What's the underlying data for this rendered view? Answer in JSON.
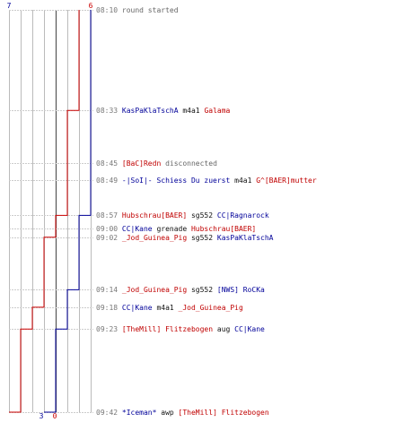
{
  "chart_data": {
    "type": "line",
    "title": "",
    "colors": {
      "red": "#cc0000",
      "blue": "#000099",
      "grid": "#bbbbbb",
      "axis": "#555555"
    },
    "series": [
      {
        "color": "#cc0000",
        "start": 6,
        "end": 0,
        "steps": [
          [
            "08:10",
            6
          ],
          [
            "08:33",
            5
          ],
          [
            "08:57",
            4
          ],
          [
            "09:02",
            3
          ],
          [
            "09:18",
            2
          ],
          [
            "09:23",
            1
          ],
          [
            "09:42",
            0
          ]
        ]
      },
      {
        "color": "#000099",
        "start": 7,
        "end": 3,
        "steps": [
          [
            "08:10",
            7
          ],
          [
            "08:57",
            6
          ],
          [
            "09:14",
            5
          ],
          [
            "09:23",
            4
          ],
          [
            "09:42",
            3
          ]
        ]
      }
    ],
    "labels": {
      "blue_start": "7",
      "red_start": "6",
      "blue_end": "3",
      "red_end": "0"
    }
  },
  "events": [
    {
      "time": "08:10",
      "parts": [
        {
          "text": "round started",
          "c": "grey"
        }
      ]
    },
    {
      "time": "08:33",
      "parts": [
        {
          "text": "KasPaKlaTschA",
          "c": "blue"
        },
        {
          "text": " m4a1 ",
          "c": "blk"
        },
        {
          "text": "Galama",
          "c": "red"
        }
      ]
    },
    {
      "time": "08:45",
      "parts": [
        {
          "text": "[BaC]Redn",
          "c": "red"
        },
        {
          "text": " disconnected",
          "c": "grey"
        }
      ]
    },
    {
      "time": "08:49",
      "parts": [
        {
          "text": "-|SoI|- Schiess Du zuerst",
          "c": "blue"
        },
        {
          "text": " m4a1 ",
          "c": "blk"
        },
        {
          "text": "G^[BAER]mutter",
          "c": "red"
        }
      ]
    },
    {
      "time": "08:57",
      "parts": [
        {
          "text": "Hubschrau[BAER]",
          "c": "red"
        },
        {
          "text": " sg552 ",
          "c": "blk"
        },
        {
          "text": "CC|Ragnarock",
          "c": "blue"
        }
      ]
    },
    {
      "time": "09:00",
      "parts": [
        {
          "text": "CC|Kane",
          "c": "blue"
        },
        {
          "text": " grenade ",
          "c": "blk"
        },
        {
          "text": "Hubschrau[BAER]",
          "c": "red"
        }
      ]
    },
    {
      "time": "09:02",
      "parts": [
        {
          "text": "_Jod_Guinea_Pig",
          "c": "red"
        },
        {
          "text": " sg552 ",
          "c": "blk"
        },
        {
          "text": "KasPaKlaTschA",
          "c": "blue"
        }
      ]
    },
    {
      "time": "09:14",
      "parts": [
        {
          "text": "_Jod_Guinea_Pig",
          "c": "red"
        },
        {
          "text": " sg552 ",
          "c": "blk"
        },
        {
          "text": "[NWS] RoCKa",
          "c": "blue"
        }
      ]
    },
    {
      "time": "09:18",
      "parts": [
        {
          "text": "CC|Kane",
          "c": "blue"
        },
        {
          "text": " m4a1 ",
          "c": "blk"
        },
        {
          "text": "_Jod_Guinea_Pig",
          "c": "red"
        }
      ]
    },
    {
      "time": "09:23",
      "parts": [
        {
          "text": "[TheMill] Flitzebogen",
          "c": "red"
        },
        {
          "text": " aug ",
          "c": "blk"
        },
        {
          "text": "CC|Kane",
          "c": "blue"
        }
      ]
    },
    {
      "time": "09:42",
      "parts": [
        {
          "text": "*Iceman*",
          "c": "blue"
        },
        {
          "text": " awp ",
          "c": "blk"
        },
        {
          "text": "[TheMill] Flitzebogen",
          "c": "red"
        }
      ]
    }
  ]
}
